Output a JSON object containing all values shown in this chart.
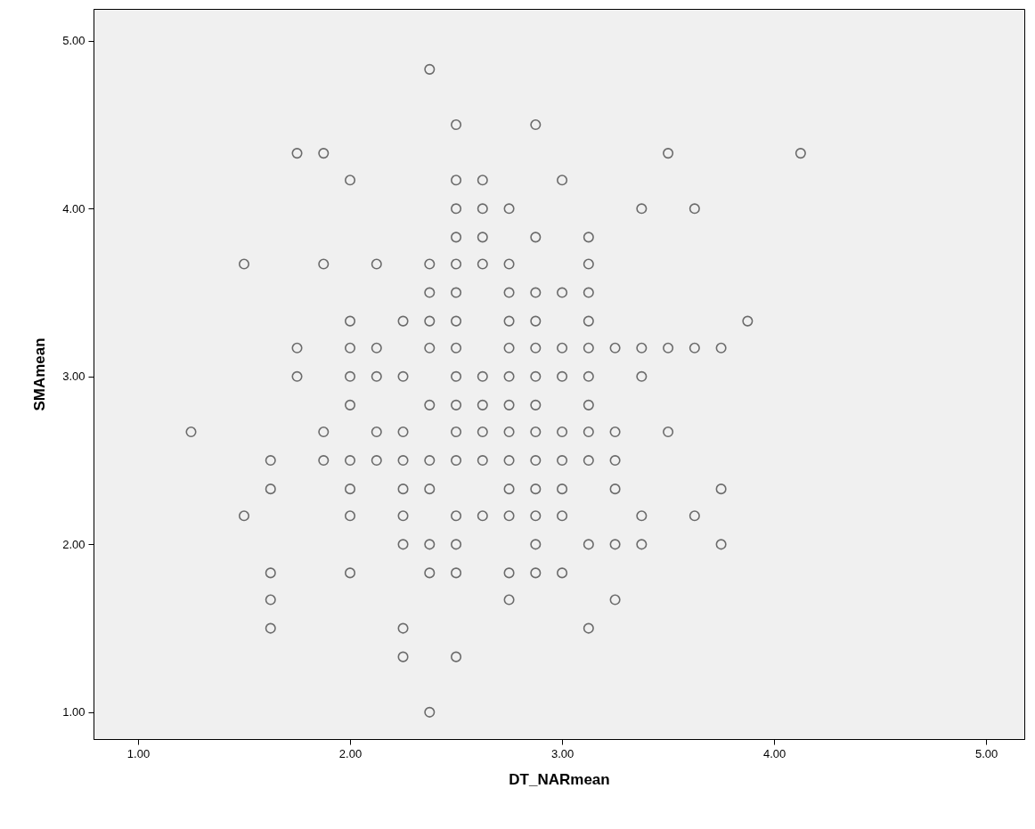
{
  "chart_data": {
    "type": "scatter",
    "xlabel": "DT_NARmean",
    "ylabel": "SMAmean",
    "marker": "circle",
    "color": "#333333",
    "x": [
      2.375,
      2.5,
      2.875,
      1.75,
      1.875,
      3.5,
      4.125,
      2.0,
      2.5,
      2.625,
      3.0,
      2.5,
      2.625,
      2.75,
      3.375,
      3.625,
      2.5,
      2.625,
      2.875,
      3.125,
      1.5,
      1.875,
      2.125,
      2.375,
      2.5,
      2.625,
      2.75,
      3.125,
      2.375,
      2.5,
      2.75,
      2.875,
      3.0,
      3.125,
      2.0,
      2.25,
      2.375,
      2.5,
      2.75,
      2.875,
      3.125,
      3.875,
      1.75,
      2.0,
      2.125,
      2.375,
      2.5,
      2.75,
      2.875,
      3.0,
      3.125,
      3.25,
      3.375,
      3.5,
      3.625,
      3.75,
      1.75,
      2.0,
      2.125,
      2.25,
      2.5,
      2.625,
      2.75,
      2.875,
      3.0,
      3.125,
      3.375,
      2.0,
      2.375,
      2.5,
      2.625,
      2.75,
      2.875,
      3.125,
      1.25,
      1.875,
      2.125,
      2.25,
      2.5,
      2.625,
      2.75,
      2.875,
      3.0,
      3.125,
      3.25,
      3.5,
      1.625,
      1.875,
      2.0,
      2.125,
      2.25,
      2.375,
      2.5,
      2.625,
      2.75,
      2.875,
      3.0,
      3.125,
      3.25,
      1.625,
      2.0,
      2.25,
      2.375,
      2.75,
      2.875,
      3.0,
      3.25,
      3.75,
      1.5,
      2.0,
      2.25,
      2.5,
      2.625,
      2.75,
      2.875,
      3.0,
      3.375,
      3.625,
      2.25,
      2.375,
      2.5,
      2.875,
      3.125,
      3.25,
      3.375,
      3.75,
      1.625,
      2.0,
      2.375,
      2.5,
      2.75,
      2.875,
      3.0,
      1.625,
      2.75,
      3.25,
      1.625,
      2.25,
      3.125,
      2.25,
      2.5,
      2.375
    ],
    "values": [
      4.83,
      4.5,
      4.5,
      4.33,
      4.33,
      4.33,
      4.33,
      4.17,
      4.17,
      4.17,
      4.17,
      4.0,
      4.0,
      4.0,
      4.0,
      4.0,
      3.83,
      3.83,
      3.83,
      3.83,
      3.67,
      3.67,
      3.67,
      3.67,
      3.67,
      3.67,
      3.67,
      3.67,
      3.5,
      3.5,
      3.5,
      3.5,
      3.5,
      3.5,
      3.33,
      3.33,
      3.33,
      3.33,
      3.33,
      3.33,
      3.33,
      3.33,
      3.17,
      3.17,
      3.17,
      3.17,
      3.17,
      3.17,
      3.17,
      3.17,
      3.17,
      3.17,
      3.17,
      3.17,
      3.17,
      3.17,
      3.0,
      3.0,
      3.0,
      3.0,
      3.0,
      3.0,
      3.0,
      3.0,
      3.0,
      3.0,
      3.0,
      2.83,
      2.83,
      2.83,
      2.83,
      2.83,
      2.83,
      2.83,
      2.67,
      2.67,
      2.67,
      2.67,
      2.67,
      2.67,
      2.67,
      2.67,
      2.67,
      2.67,
      2.67,
      2.67,
      2.5,
      2.5,
      2.5,
      2.5,
      2.5,
      2.5,
      2.5,
      2.5,
      2.5,
      2.5,
      2.5,
      2.5,
      2.5,
      2.33,
      2.33,
      2.33,
      2.33,
      2.33,
      2.33,
      2.33,
      2.33,
      2.33,
      2.17,
      2.17,
      2.17,
      2.17,
      2.17,
      2.17,
      2.17,
      2.17,
      2.17,
      2.17,
      2.0,
      2.0,
      2.0,
      2.0,
      2.0,
      2.0,
      2.0,
      2.0,
      1.83,
      1.83,
      1.83,
      1.83,
      1.83,
      1.83,
      1.83,
      1.67,
      1.67,
      1.67,
      1.5,
      1.5,
      1.5,
      1.33,
      1.33,
      1.0
    ],
    "xlim": [
      0.79,
      5.18
    ],
    "ylim": [
      0.84,
      5.19
    ],
    "xticks": [
      {
        "value": 1,
        "label": "1.00"
      },
      {
        "value": 2,
        "label": "2.00"
      },
      {
        "value": 3,
        "label": "3.00"
      },
      {
        "value": 4,
        "label": "4.00"
      },
      {
        "value": 5,
        "label": "5.00"
      }
    ],
    "yticks": [
      {
        "value": 1,
        "label": "1.00"
      },
      {
        "value": 2,
        "label": "2.00"
      },
      {
        "value": 3,
        "label": "3.00"
      },
      {
        "value": 4,
        "label": "4.00"
      },
      {
        "value": 5,
        "label": "5.00"
      }
    ]
  }
}
